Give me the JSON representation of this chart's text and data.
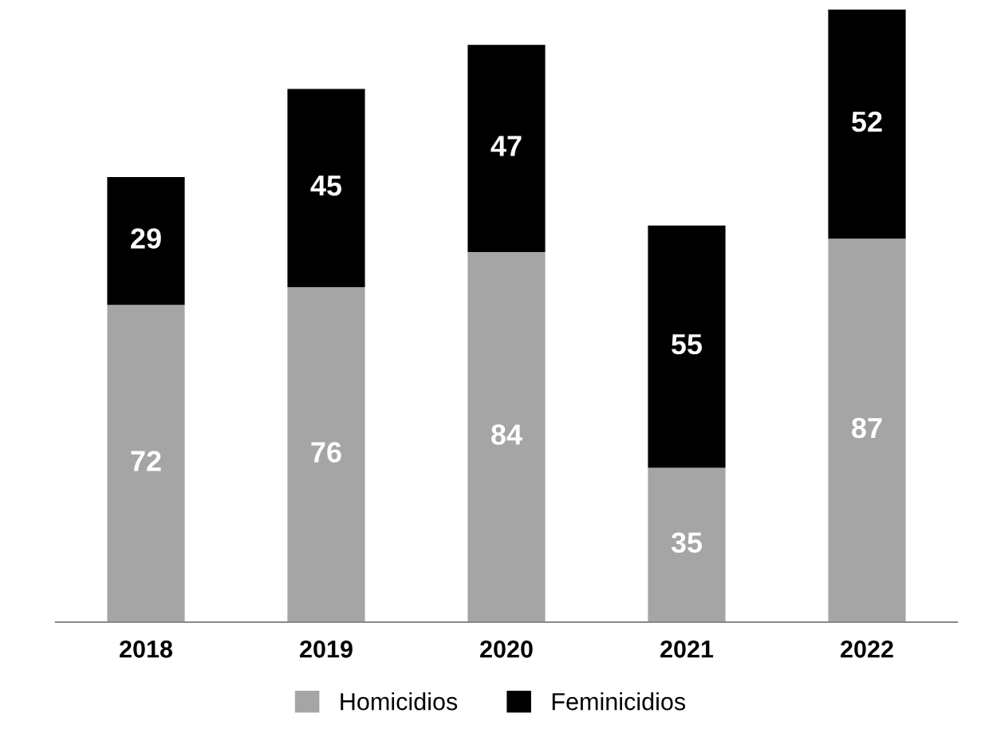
{
  "chart_data": {
    "type": "bar",
    "stacked": true,
    "categories": [
      "2018",
      "2019",
      "2020",
      "2021",
      "2022"
    ],
    "series": [
      {
        "name": "Homicidios",
        "color": "#a5a5a5",
        "values": [
          72,
          76,
          84,
          35,
          87
        ]
      },
      {
        "name": "Feminicidios",
        "color": "#000000",
        "values": [
          29,
          45,
          47,
          55,
          52
        ]
      }
    ],
    "data_labels": true,
    "legend": "bottom",
    "grid": false
  }
}
